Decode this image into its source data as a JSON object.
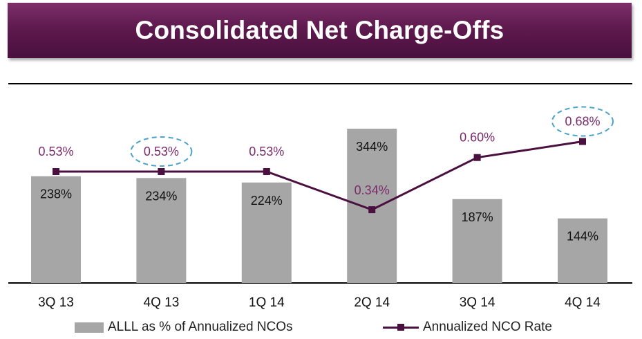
{
  "header": {
    "title": "Consolidated Net Charge-Offs"
  },
  "chart_data": {
    "type": "bar+line",
    "categories": [
      "3Q 13",
      "4Q 13",
      "1Q 14",
      "2Q 14",
      "3Q 14",
      "4Q 14"
    ],
    "series": [
      {
        "name": "ALLL as % of Annualized NCOs",
        "type": "bar",
        "values": [
          238,
          234,
          224,
          344,
          187,
          144
        ],
        "labels": [
          "238%",
          "234%",
          "224%",
          "344%",
          "187%",
          "144%"
        ],
        "color": "#a6a6a6"
      },
      {
        "name": "Annualized NCO Rate",
        "type": "line",
        "values": [
          0.53,
          0.53,
          0.53,
          0.34,
          0.6,
          0.68
        ],
        "labels": [
          "0.53%",
          "0.53%",
          "0.53%",
          "0.34%",
          "0.60%",
          "0.68%"
        ],
        "color": "#4a1040"
      }
    ],
    "highlighted_points": [
      "4Q 13",
      "4Q 14"
    ],
    "highlight_color": "#4aa3c8",
    "label_color": "#7a2a6a",
    "legend_position": "bottom",
    "grid": false
  }
}
